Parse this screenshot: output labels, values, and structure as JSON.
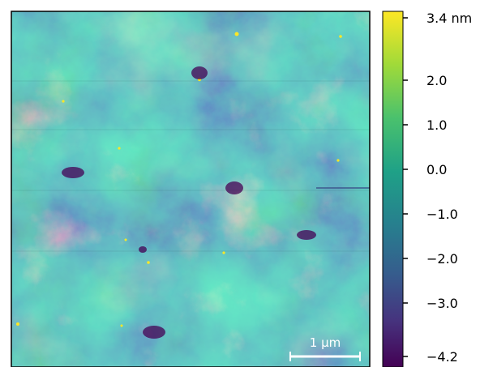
{
  "image": {
    "description_colormap": "viridis",
    "scalebar": {
      "label": "1 μm"
    }
  },
  "colorbar": {
    "colormap": "viridis",
    "range": [
      -4.2,
      3.4
    ],
    "ticks": [
      {
        "value": 3.4,
        "label": "3.4 nm"
      },
      {
        "value": 2.0,
        "label": "2.0"
      },
      {
        "value": 1.0,
        "label": "1.0"
      },
      {
        "value": 0.0,
        "label": "0.0"
      },
      {
        "value": -1.0,
        "label": "−1.0"
      },
      {
        "value": -2.0,
        "label": "−2.0"
      },
      {
        "value": -3.0,
        "label": "−3.0"
      },
      {
        "value": -4.2,
        "label": "−4.2"
      }
    ],
    "colors": [
      "#440154",
      "#3b528b",
      "#21918c",
      "#5ec962",
      "#fde725"
    ]
  }
}
